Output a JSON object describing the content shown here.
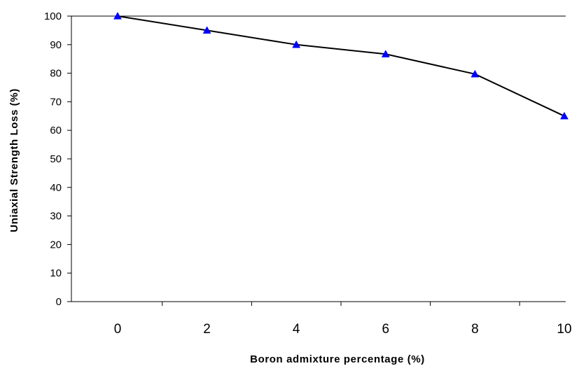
{
  "chart_data": {
    "type": "line",
    "title": "",
    "xlabel": "Boron admixture percentage  (%)",
    "ylabel": "Uniaxial Strength Loss  (%)",
    "x": [
      0,
      2,
      4,
      6,
      8,
      10
    ],
    "categories": [
      "0",
      "2",
      "4",
      "6",
      "8",
      "10"
    ],
    "values": [
      100,
      95,
      90,
      86.7,
      79.7,
      65
    ],
    "ylim": [
      0,
      100
    ],
    "yticks": [
      "0",
      "10",
      "20",
      "30",
      "40",
      "50",
      "60",
      "70",
      "80",
      "90",
      "100"
    ],
    "grid": false,
    "legend": "none",
    "colors": {
      "line": "#000000",
      "marker": "#0000ff",
      "axis": "#000000"
    },
    "marker": "triangle"
  }
}
